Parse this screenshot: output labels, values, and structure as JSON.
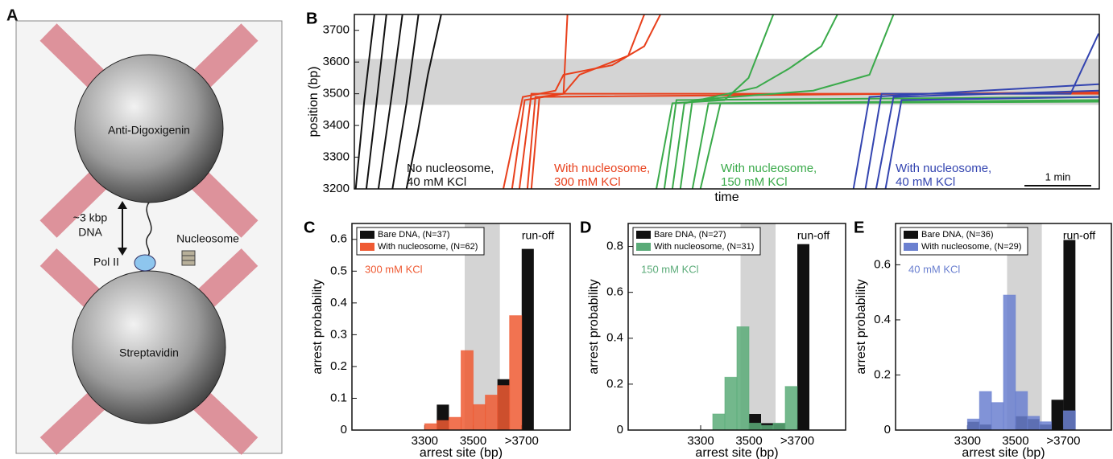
{
  "diagram": {
    "panel_label": "A",
    "top_bead": "Anti-Digoxigenin",
    "bottom_bead": "Streptavidin",
    "tether_length": "~3 kbp",
    "tether_type": "DNA",
    "nucleosome": "Nucleosome",
    "polymerase": "Pol II"
  },
  "chart_data": [
    {
      "type": "line",
      "panel_label": "B",
      "xlabel": "time",
      "ylabel": "position (bp)",
      "xlim": [
        0,
        11.15
      ],
      "ylim": [
        3200,
        3750
      ],
      "yticks": [
        3200,
        3300,
        3400,
        3500,
        3600,
        3700
      ],
      "shaded_region": [
        3465,
        3610
      ],
      "scale_bar": {
        "value": 1,
        "label": "1 min"
      },
      "series": [
        {
          "color": "#111111",
          "annotation": [
            "No nucleosome,",
            "40 mM KCl"
          ],
          "traces": [
            {
              "x": [
                0.02,
                0.15,
                0.3
              ],
              "y": [
                3200,
                3480,
                3750
              ]
            },
            {
              "x": [
                0.18,
                0.33,
                0.48
              ],
              "y": [
                3200,
                3470,
                3750
              ]
            },
            {
              "x": [
                0.36,
                0.55,
                0.72
              ],
              "y": [
                3200,
                3480,
                3750
              ]
            },
            {
              "x": [
                0.57,
                0.78,
                0.96
              ],
              "y": [
                3200,
                3470,
                3750
              ]
            },
            {
              "x": [
                0.78,
                0.95,
                1.1,
                1.3
              ],
              "y": [
                3200,
                3380,
                3560,
                3750
              ]
            }
          ]
        },
        {
          "color": "#e8401c",
          "annotation": [
            "With nucleosome,",
            "300 mM KCl"
          ],
          "traces": [
            {
              "x": [
                2.23,
                2.52,
                3.01,
                3.13,
                3.86,
                4.34,
                4.58
              ],
              "y": [
                3200,
                3490,
                3510,
                3560,
                3590,
                3650,
                3750
              ]
            },
            {
              "x": [
                2.36,
                2.55,
                3.13,
                3.37,
                4.1,
                4.34
              ],
              "y": [
                3200,
                3480,
                3500,
                3560,
                3620,
                3750
              ]
            },
            {
              "x": [
                2.47,
                2.65,
                5.3,
                11.14
              ],
              "y": [
                3200,
                3500,
                3500,
                3500
              ]
            },
            {
              "x": [
                2.65,
                2.77,
                3.13,
                3.19
              ],
              "y": [
                3200,
                3490,
                3500,
                3750
              ]
            },
            {
              "x": [
                2.59,
                2.71,
                11.14
              ],
              "y": [
                3200,
                3490,
                3505
              ]
            }
          ]
        },
        {
          "color": "#3aaa4a",
          "annotation": [
            "With nucleosome,",
            "150 mM KCl"
          ],
          "traces": [
            {
              "x": [
                4.52,
                4.76,
                5.54,
                5.9,
                6.27
              ],
              "y": [
                3200,
                3470,
                3480,
                3550,
                3750
              ]
            },
            {
              "x": [
                4.64,
                4.82,
                11.14
              ],
              "y": [
                3200,
                3480,
                3490
              ]
            },
            {
              "x": [
                4.76,
                4.94,
                6.02,
                6.51,
                6.99,
                7.23
              ],
              "y": [
                3200,
                3470,
                3520,
                3580,
                3650,
                3750
              ]
            },
            {
              "x": [
                4.88,
                5.06,
                6.87,
                7.71,
                8.07
              ],
              "y": [
                3200,
                3480,
                3510,
                3560,
                3750
              ]
            },
            {
              "x": [
                5.06,
                5.3,
                11.14
              ],
              "y": [
                3200,
                3470,
                3480
              ]
            },
            {
              "x": [
                5.18,
                5.48,
                11.14
              ],
              "y": [
                3200,
                3470,
                3475
              ]
            }
          ]
        },
        {
          "color": "#3344b0",
          "annotation": [
            "With nucleosome,",
            "40 mM KCl"
          ],
          "traces": [
            {
              "x": [
                7.47,
                7.71,
                11.14
              ],
              "y": [
                3200,
                3490,
                3530
              ]
            },
            {
              "x": [
                7.65,
                7.89,
                10.72,
                11.14
              ],
              "y": [
                3200,
                3500,
                3500,
                3690
              ]
            },
            {
              "x": [
                7.81,
                8.07,
                11.14
              ],
              "y": [
                3200,
                3490,
                3510
              ]
            },
            {
              "x": [
                7.95,
                8.19,
                11.14
              ],
              "y": [
                3200,
                3480,
                3490
              ]
            }
          ]
        }
      ]
    },
    {
      "type": "histogram",
      "panel_label": "C",
      "xlabel": "arrest site (bp)",
      "ylabel": "arrest probability",
      "bins": [
        3250,
        3300,
        3350,
        3400,
        3450,
        3500,
        3550,
        3600,
        3650,
        3700,
        3750
      ],
      "series": [
        {
          "name": "Bare DNA, (N=37)",
          "color": "#111111",
          "values": [
            0,
            0,
            0.08,
            0,
            0,
            0,
            0,
            0.16,
            0,
            0.57
          ]
        },
        {
          "name": "With nucleosome, (N=62)",
          "color": "#ef5a33",
          "values": [
            0,
            0.02,
            0.03,
            0.04,
            0.25,
            0.08,
            0.11,
            0.14,
            0.36,
            0
          ]
        }
      ],
      "xlim": [
        3000,
        3900
      ],
      "ylim": [
        0,
        0.65
      ],
      "xticks": [
        3300,
        3500,
        {
          "value": 3700,
          "label": ">3700"
        }
      ],
      "yticks": [
        0,
        0.1,
        0.2,
        0.3,
        0.4,
        0.5,
        0.6
      ],
      "shaded_region": [
        3465,
        3610
      ],
      "condition": "300 mM KCl",
      "runoff_label": "run-off"
    },
    {
      "type": "histogram",
      "panel_label": "D",
      "xlabel": "arrest site (bp)",
      "ylabel": "arrest probability",
      "bins": [
        3250,
        3300,
        3350,
        3400,
        3450,
        3500,
        3550,
        3600,
        3650,
        3700,
        3750
      ],
      "series": [
        {
          "name": "Bare DNA, (N=27)",
          "color": "#111111",
          "values": [
            0,
            0,
            0,
            0,
            0,
            0.07,
            0.03,
            0.03,
            0,
            0.81
          ]
        },
        {
          "name": "With nucleosome, (N=31)",
          "color": "#5aab78",
          "values": [
            0,
            0,
            0.07,
            0.23,
            0.45,
            0.03,
            0.02,
            0.03,
            0.19,
            0
          ]
        }
      ],
      "xlim": [
        3000,
        3900
      ],
      "ylim": [
        0,
        0.9
      ],
      "xticks": [
        3300,
        3500,
        {
          "value": 3700,
          "label": ">3700"
        }
      ],
      "yticks": [
        0,
        0.2,
        0.4,
        0.6,
        0.8
      ],
      "shaded_region": [
        3465,
        3610
      ],
      "condition": "150 mM KCl",
      "runoff_label": "run-off"
    },
    {
      "type": "histogram",
      "panel_label": "E",
      "xlabel": "arrest site (bp)",
      "ylabel": "arrest probability",
      "bins": [
        3250,
        3300,
        3350,
        3400,
        3450,
        3500,
        3550,
        3600,
        3650,
        3700,
        3750
      ],
      "series": [
        {
          "name": "Bare DNA, (N=36)",
          "color": "#111111",
          "values": [
            0,
            0.03,
            0.02,
            0,
            0,
            0.05,
            0.04,
            0.02,
            0.11,
            0.69
          ]
        },
        {
          "name": "With nucleosome, (N=29)",
          "color": "#6b80d0",
          "values": [
            0,
            0.04,
            0.14,
            0.1,
            0.49,
            0.14,
            0.05,
            0.03,
            0,
            0.07
          ]
        }
      ],
      "xlim": [
        3000,
        3900
      ],
      "ylim": [
        0,
        0.75
      ],
      "xticks": [
        3300,
        3500,
        {
          "value": 3700,
          "label": ">3700"
        }
      ],
      "yticks": [
        0,
        0.2,
        0.4,
        0.6
      ],
      "shaded_region": [
        3465,
        3610
      ],
      "condition": "40 mM KCl",
      "runoff_label": "run-off"
    }
  ]
}
